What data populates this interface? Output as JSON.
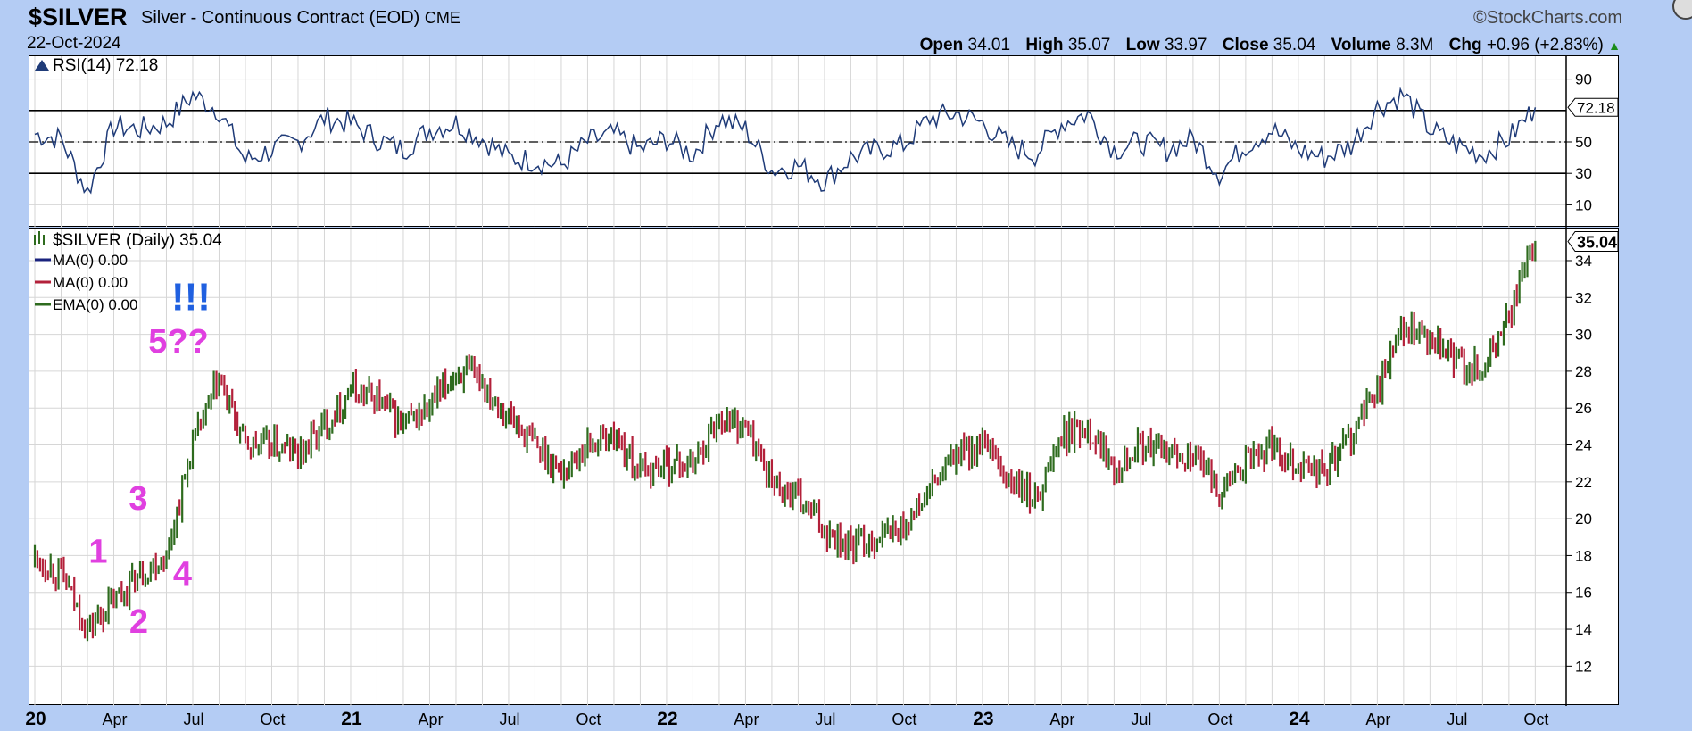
{
  "header": {
    "symbol": "$SILVER",
    "description": "Silver - Continuous Contract (EOD)",
    "exchange": "CME",
    "date": "22-Oct-2024",
    "brand": "©StockCharts.com",
    "open_label": "Open",
    "open": "34.01",
    "high_label": "High",
    "high": "35.07",
    "low_label": "Low",
    "low": "33.97",
    "close_label": "Close",
    "close": "35.04",
    "volume_label": "Volume",
    "volume": "8.3M",
    "chg_label": "Chg",
    "chg": "+0.96 (+2.83%)"
  },
  "colors": {
    "background": "#b4ccf4",
    "rsi_line": "#1f3b78",
    "up_bar": "#2e6b1e",
    "down_bar": "#b3203a",
    "annotation_magenta": "#e040e0",
    "annotation_blue": "#2060e0"
  },
  "chart_data": [
    {
      "type": "line",
      "legend": "RSI(14) 72.18",
      "y_ticks": [
        10,
        30,
        50,
        90
      ],
      "ylim": [
        0,
        100
      ],
      "reference_lines": [
        30,
        50,
        70
      ],
      "last_value_label": "72.18",
      "x": [
        "2020-01",
        "2020-02",
        "2020-03",
        "2020-04",
        "2020-05",
        "2020-06",
        "2020-07",
        "2020-08",
        "2020-09",
        "2020-10",
        "2020-11",
        "2020-12",
        "2021-01",
        "2021-02",
        "2021-03",
        "2021-04",
        "2021-05",
        "2021-06",
        "2021-07",
        "2021-08",
        "2021-09",
        "2021-10",
        "2021-11",
        "2021-12",
        "2022-01",
        "2022-02",
        "2022-03",
        "2022-04",
        "2022-05",
        "2022-06",
        "2022-07",
        "2022-08",
        "2022-09",
        "2022-10",
        "2022-11",
        "2022-12",
        "2023-01",
        "2023-02",
        "2023-03",
        "2023-04",
        "2023-05",
        "2023-06",
        "2023-07",
        "2023-08",
        "2023-09",
        "2023-10",
        "2023-11",
        "2023-12",
        "2024-01",
        "2024-02",
        "2024-03",
        "2024-04",
        "2024-05",
        "2024-06",
        "2024-07",
        "2024-08",
        "2024-09",
        "2024-10"
      ],
      "values": [
        55,
        52,
        18,
        60,
        58,
        62,
        80,
        70,
        38,
        45,
        50,
        65,
        62,
        52,
        45,
        58,
        62,
        52,
        40,
        38,
        35,
        50,
        55,
        45,
        52,
        42,
        65,
        58,
        32,
        35,
        25,
        40,
        45,
        48,
        65,
        68,
        62,
        48,
        42,
        62,
        68,
        45,
        50,
        45,
        52,
        30,
        48,
        58,
        45,
        40,
        48,
        72,
        80,
        58,
        48,
        42,
        52,
        72
      ]
    },
    {
      "type": "bar",
      "legend": "$SILVER (Daily) 35.04",
      "legend_items": [
        "MA(0) 0.00",
        "MA(0) 0.00",
        "EMA(0) 0.00"
      ],
      "last_value_label": "35.04",
      "ylim": [
        11,
        35.5
      ],
      "y_ticks": [
        12,
        14,
        16,
        18,
        20,
        22,
        24,
        26,
        28,
        30,
        32,
        34
      ],
      "x_tick_labels": [
        "20",
        "Apr",
        "Jul",
        "Oct",
        "21",
        "Apr",
        "Jul",
        "Oct",
        "22",
        "Apr",
        "Jul",
        "Oct",
        "23",
        "Apr",
        "Jul",
        "Oct",
        "24",
        "Apr",
        "Jul",
        "Oct"
      ],
      "x": [
        "2020-01",
        "2020-02",
        "2020-03",
        "2020-04",
        "2020-05",
        "2020-06",
        "2020-07",
        "2020-08",
        "2020-09",
        "2020-10",
        "2020-11",
        "2020-12",
        "2021-01",
        "2021-02",
        "2021-03",
        "2021-04",
        "2021-05",
        "2021-06",
        "2021-07",
        "2021-08",
        "2021-09",
        "2021-10",
        "2021-11",
        "2021-12",
        "2022-01",
        "2022-02",
        "2022-03",
        "2022-04",
        "2022-05",
        "2022-06",
        "2022-07",
        "2022-08",
        "2022-09",
        "2022-10",
        "2022-11",
        "2022-12",
        "2023-01",
        "2023-02",
        "2023-03",
        "2023-04",
        "2023-05",
        "2023-06",
        "2023-07",
        "2023-08",
        "2023-09",
        "2023-10",
        "2023-11",
        "2023-12",
        "2024-01",
        "2024-02",
        "2024-03",
        "2024-04",
        "2024-05",
        "2024-06",
        "2024-07",
        "2024-08",
        "2024-09",
        "2024-10"
      ],
      "values": [
        17.9,
        17.0,
        14.0,
        15.5,
        17.0,
        18.0,
        24.0,
        27.5,
        24.0,
        24.0,
        23.5,
        25.0,
        27.0,
        26.5,
        25.0,
        26.0,
        28.0,
        27.5,
        25.5,
        24.0,
        22.5,
        24.0,
        24.5,
        22.5,
        23.0,
        23.0,
        25.5,
        25.0,
        22.0,
        21.0,
        19.5,
        18.5,
        19.0,
        19.5,
        21.5,
        23.5,
        24.0,
        22.0,
        21.0,
        24.5,
        25.0,
        23.0,
        24.0,
        23.5,
        23.5,
        21.5,
        23.0,
        24.0,
        23.0,
        22.5,
        24.5,
        27.0,
        30.5,
        29.5,
        28.5,
        28.0,
        31.0,
        35.04
      ],
      "annotations": [
        {
          "text": "1",
          "x": "2020-03",
          "y": 17.6
        },
        {
          "text": "2",
          "x": "2020-04",
          "y": 13.8
        },
        {
          "text": "3",
          "x": "2020-05",
          "y": 20.5
        },
        {
          "text": "4",
          "x": "2020-06",
          "y": 16.4
        },
        {
          "text": "5??",
          "x": "2020-07",
          "y": 29.0
        },
        {
          "text": "!!!",
          "x": "2020-07",
          "y": 31.3
        }
      ]
    }
  ]
}
